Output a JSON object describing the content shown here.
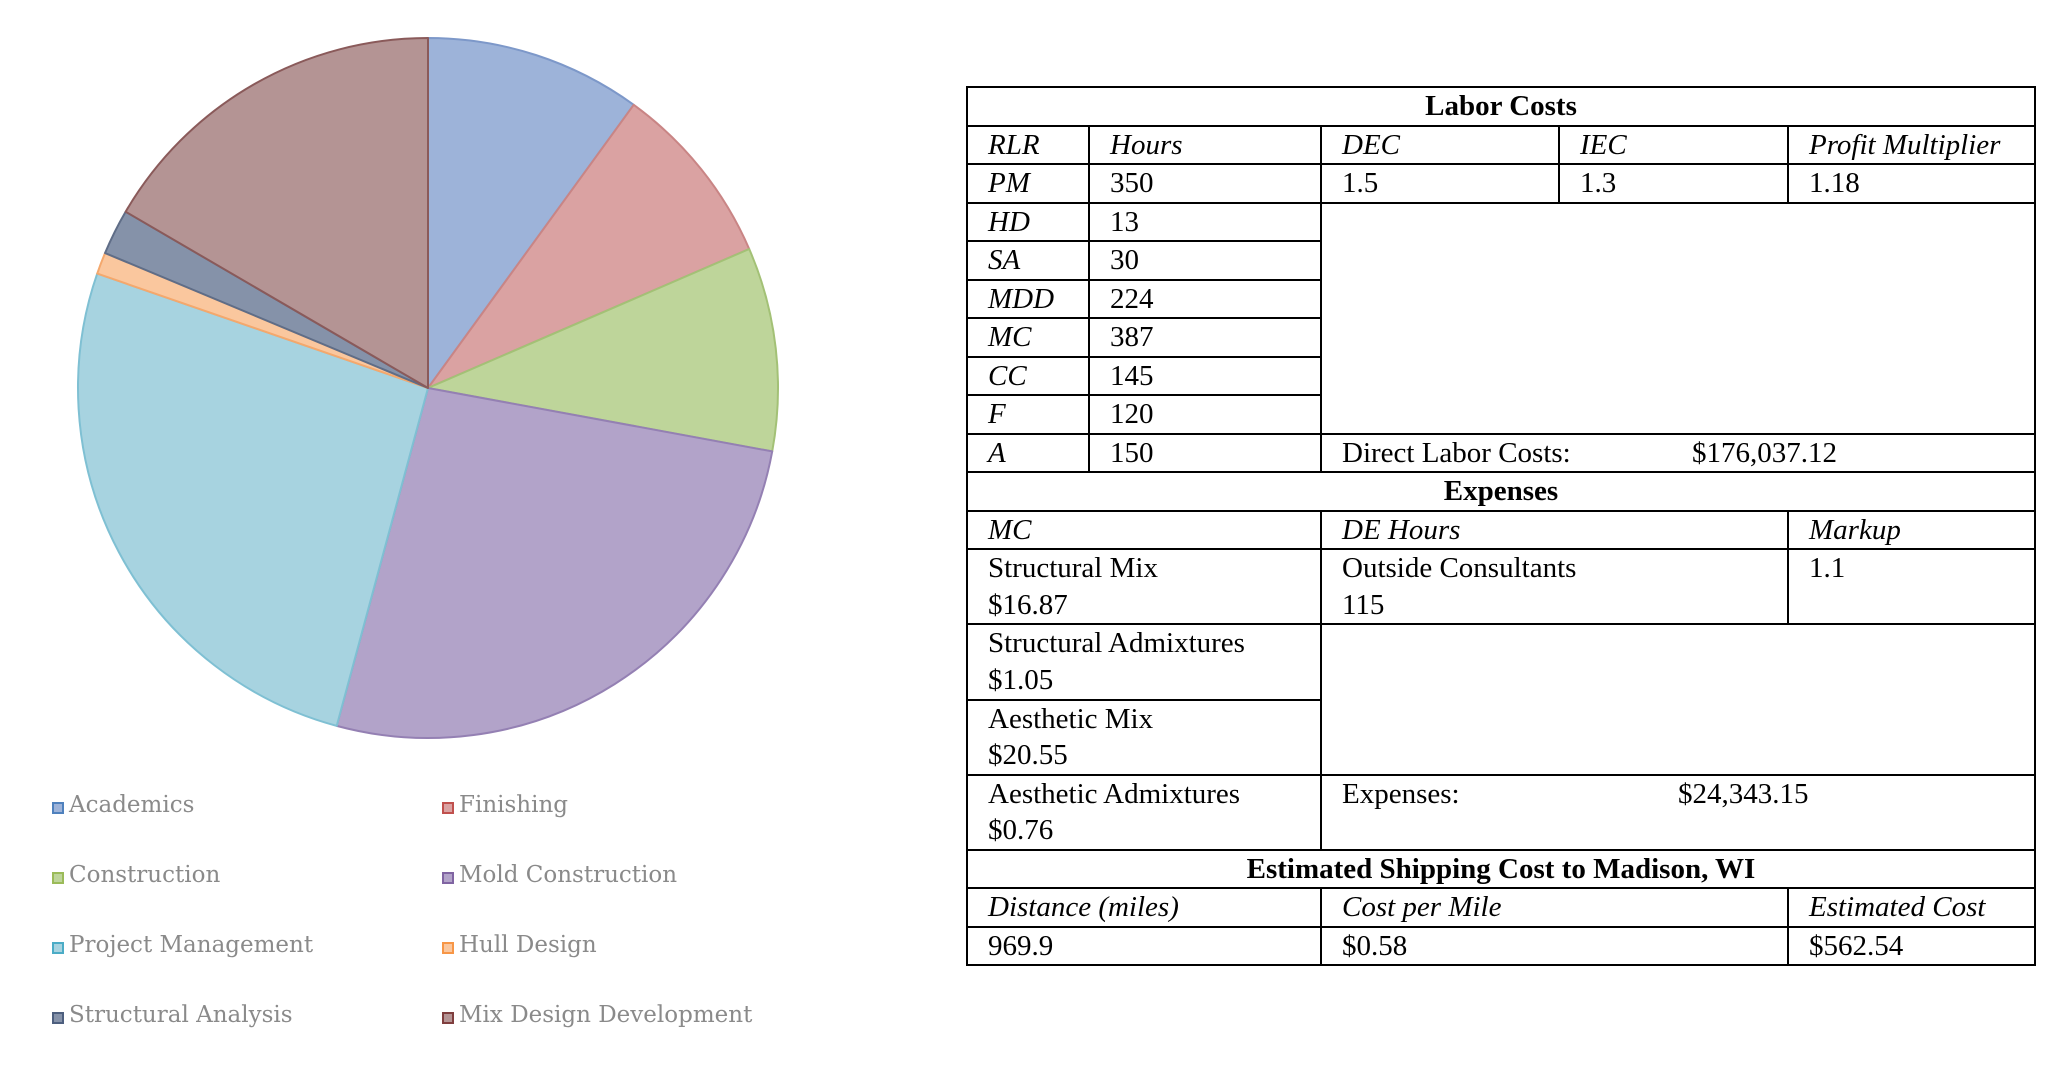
{
  "chart_data": {
    "type": "pie",
    "start": "12 o'clock, clockwise",
    "slices": [
      {
        "label": "Academics",
        "value": 10,
        "color": "#9db3d9",
        "edge": "#7d98c9",
        "swatch": "#4f81bd"
      },
      {
        "label": "Finishing",
        "value": 8.5,
        "color": "#daa2a2",
        "edge": "#c98585",
        "swatch": "#c0504d"
      },
      {
        "label": "Construction",
        "value": 9.4,
        "color": "#bed59a",
        "edge": "#a3c176",
        "swatch": "#9bbb59"
      },
      {
        "label": "Mold Construction",
        "value": 26.3,
        "color": "#b2a3c9",
        "edge": "#9480b3",
        "swatch": "#8064a2"
      },
      {
        "label": "Project Management",
        "value": 26.1,
        "color": "#a7d3e0",
        "edge": "#7fc0d3",
        "swatch": "#4bacc6"
      },
      {
        "label": "Hull Design",
        "value": 1.0,
        "color": "#fac79e",
        "edge": "#f4a86d",
        "swatch": "#f79646"
      },
      {
        "label": "Structural Analysis",
        "value": 2.1,
        "color": "#8592a9",
        "edge": "#5f6d87",
        "swatch": "#4d5f7e"
      },
      {
        "label": "Mix Design Development",
        "value": 16.6,
        "color": "#b49494",
        "edge": "#8a5a5a",
        "swatch": "#7f3e3e"
      }
    ]
  },
  "labor": {
    "title": "Labor Costs",
    "headers": [
      "RLR",
      "Hours",
      "DEC",
      "IEC",
      "Profit Multiplier"
    ],
    "first_row": {
      "role": "PM",
      "hours": "350",
      "dec": "1.5",
      "iec": "1.3",
      "profit": "1.18"
    },
    "rows": [
      {
        "role": "HD",
        "hours": "13"
      },
      {
        "role": "SA",
        "hours": "30"
      },
      {
        "role": "MDD",
        "hours": "224"
      },
      {
        "role": "MC",
        "hours": "387"
      },
      {
        "role": "CC",
        "hours": "145"
      },
      {
        "role": "F",
        "hours": "120"
      }
    ],
    "last_row": {
      "role": "A",
      "hours": "150"
    },
    "direct_label": "Direct Labor Costs:",
    "direct_value": "$176,037.12"
  },
  "expenses": {
    "title": "Expenses",
    "headers": [
      "MC",
      "DE Hours",
      "Markup"
    ],
    "structural_mix": {
      "label": "Structural Mix",
      "value": "$16.87"
    },
    "outside_consultants": {
      "label": "Outside Consultants",
      "value": "115"
    },
    "markup_value": "1.1",
    "structural_admixtures": {
      "label": "Structural Admixtures",
      "value": "$1.05"
    },
    "aesthetic_mix": {
      "label": "Aesthetic Mix",
      "value": "$20.55"
    },
    "aesthetic_admixtures": {
      "label": "Aesthetic Admixtures",
      "value": "$0.76"
    },
    "total_label": "Expenses:",
    "total_value": "$24,343.15"
  },
  "shipping": {
    "title": "Estimated Shipping Cost to Madison, WI",
    "headers": [
      "Distance (miles)",
      "Cost per Mile",
      "Estimated Cost"
    ],
    "values": [
      "969.9",
      "$0.58",
      "$562.54"
    ]
  }
}
